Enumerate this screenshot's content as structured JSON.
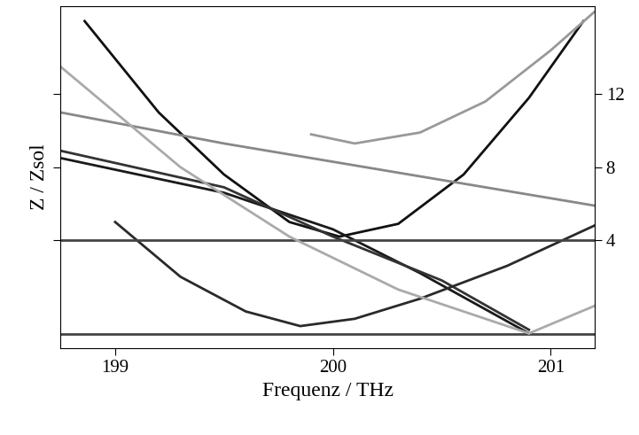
{
  "chart_data": {
    "type": "line",
    "xlabel": "Frequenz / THz",
    "ylabel": "Z / Zsol",
    "xlim": [
      198.75,
      201.2
    ],
    "xticks": [
      199,
      200,
      201
    ],
    "ylim": [
      -1.9,
      16.8
    ],
    "yticks": [
      4,
      8,
      12
    ],
    "tick_labels": true,
    "series": [
      {
        "color": "#111111",
        "line_style": "solid",
        "x": [
          198.86,
          199.2,
          199.5,
          199.8,
          200.03,
          200.3,
          200.6,
          200.9,
          201.15
        ],
        "values": [
          16.0,
          11.0,
          7.6,
          5.0,
          4.2,
          4.9,
          7.6,
          11.8,
          16.0
        ]
      },
      {
        "color": "#1a1a1a",
        "line_style": "solid",
        "x": [
          198.75,
          199.5,
          200.0,
          200.4,
          200.9
        ],
        "values": [
          8.5,
          6.6,
          4.6,
          2.2,
          -1.1
        ]
      },
      {
        "color": "#333333",
        "line_style": "solid",
        "x": [
          198.75,
          199.5,
          200.0,
          200.5,
          200.9
        ],
        "values": [
          8.9,
          6.9,
          4.2,
          1.8,
          -0.9
        ]
      },
      {
        "color": "#2a2a2a",
        "line_style": "solid",
        "x": [
          199.0,
          199.3,
          199.6,
          199.85,
          200.1,
          200.4,
          200.8,
          201.2
        ],
        "values": [
          5.0,
          2.0,
          0.1,
          -0.7,
          -0.3,
          0.8,
          2.6,
          4.8
        ]
      },
      {
        "color": "#444444",
        "line_style": "solid",
        "x": [
          198.75,
          201.2
        ],
        "values": [
          4.0,
          4.0
        ]
      },
      {
        "color": "#444444",
        "line_style": "solid",
        "x": [
          198.75,
          201.2
        ],
        "values": [
          -1.15,
          -1.15
        ]
      },
      {
        "color": "#999999",
        "line_style": "solid",
        "x": [
          199.9,
          200.1,
          200.4,
          200.7,
          201.0,
          201.2
        ],
        "values": [
          9.8,
          9.3,
          9.9,
          11.6,
          14.4,
          16.5
        ]
      },
      {
        "color": "#888888",
        "line_style": "solid",
        "x": [
          198.75,
          199.5,
          200.3,
          201.2
        ],
        "values": [
          11.0,
          9.3,
          7.7,
          5.9
        ]
      },
      {
        "color": "#aaaaaa",
        "line_style": "solid",
        "x": [
          198.75,
          199.3,
          199.8,
          200.3,
          200.9
        ],
        "values": [
          13.5,
          8.0,
          4.2,
          1.3,
          -1.1
        ]
      },
      {
        "color": "#aaaaaa",
        "line_style": "solid",
        "x": [
          200.9,
          201.2
        ],
        "values": [
          -1.1,
          0.4
        ]
      }
    ]
  }
}
